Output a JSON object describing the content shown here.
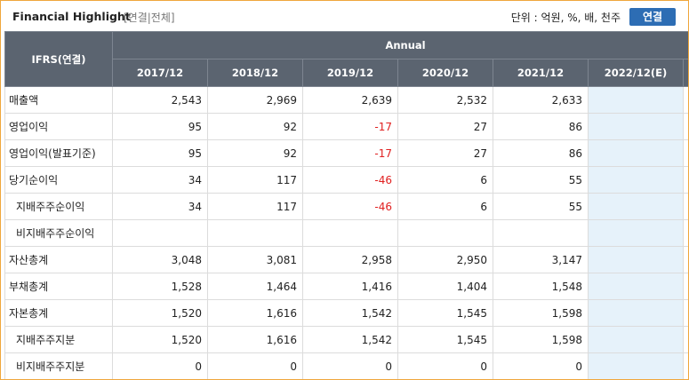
{
  "header": {
    "title": "Financial Highlight",
    "scope": "[연결|전체]",
    "unit": "단위 : 억원, %, 배, 천주",
    "button": "연결"
  },
  "table": {
    "corner": "IFRS(연결)",
    "group": "Annual",
    "columns": [
      "2017/12",
      "2018/12",
      "2019/12",
      "2020/12",
      "2021/12",
      "2022/12(E)"
    ],
    "rows": [
      {
        "label": "매출액",
        "indent": false,
        "values": [
          "2,543",
          "2,969",
          "2,639",
          "2,532",
          "2,633"
        ]
      },
      {
        "label": "영업이익",
        "indent": false,
        "values": [
          "95",
          "92",
          "-17",
          "27",
          "86"
        ]
      },
      {
        "label": "영업이익(발표기준)",
        "indent": false,
        "values": [
          "95",
          "92",
          "-17",
          "27",
          "86"
        ]
      },
      {
        "label": "당기순이익",
        "indent": false,
        "values": [
          "34",
          "117",
          "-46",
          "6",
          "55"
        ]
      },
      {
        "label": "지배주주순이익",
        "indent": true,
        "values": [
          "34",
          "117",
          "-46",
          "6",
          "55"
        ]
      },
      {
        "label": "비지배주주순이익",
        "indent": true,
        "values": [
          null,
          null,
          null,
          null,
          null
        ]
      },
      {
        "label": "자산총계",
        "indent": false,
        "values": [
          "3,048",
          "3,081",
          "2,958",
          "2,950",
          "3,147"
        ]
      },
      {
        "label": "부채총계",
        "indent": false,
        "values": [
          "1,528",
          "1,464",
          "1,416",
          "1,404",
          "1,548"
        ]
      },
      {
        "label": "자본총계",
        "indent": false,
        "values": [
          "1,520",
          "1,616",
          "1,542",
          "1,545",
          "1,598"
        ]
      },
      {
        "label": "지배주주지분",
        "indent": true,
        "values": [
          "1,520",
          "1,616",
          "1,542",
          "1,545",
          "1,598"
        ]
      },
      {
        "label": "비지배주주지분",
        "indent": true,
        "values": [
          "0",
          "0",
          "0",
          "0",
          "0"
        ]
      }
    ]
  }
}
